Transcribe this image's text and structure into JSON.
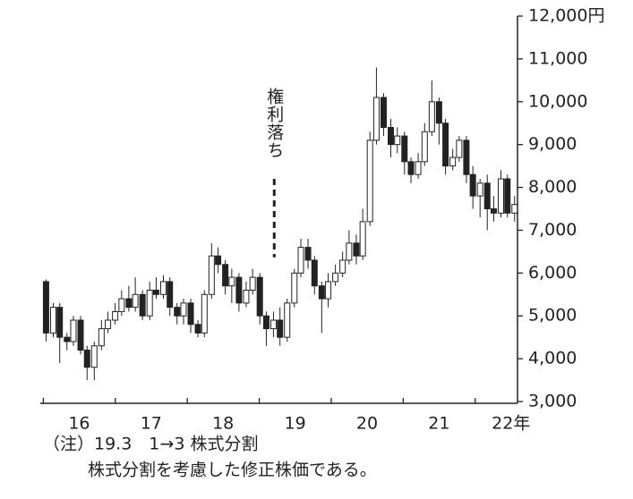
{
  "chart_data": {
    "type": "candlestick",
    "x": [
      2015.54,
      2015.64,
      2015.73,
      2015.83,
      2015.92,
      2016.02,
      2016.11,
      2016.21,
      2016.31,
      2016.4,
      2016.5,
      2016.59,
      2016.69,
      2016.78,
      2016.88,
      2016.98,
      2017.07,
      2017.17,
      2017.26,
      2017.36,
      2017.45,
      2017.55,
      2017.65,
      2017.74,
      2017.84,
      2017.93,
      2018.03,
      2018.12,
      2018.22,
      2018.32,
      2018.41,
      2018.51,
      2018.6,
      2018.7,
      2018.79,
      2018.89,
      2018.99,
      2019.08,
      2019.18,
      2019.27,
      2019.37,
      2019.46,
      2019.56,
      2019.66,
      2019.75,
      2019.85,
      2019.94,
      2020.04,
      2020.13,
      2020.23,
      2020.33,
      2020.42,
      2020.52,
      2020.61,
      2020.71,
      2020.8,
      2020.9,
      2021.0,
      2021.09,
      2021.19,
      2021.28,
      2021.38,
      2021.47,
      2021.57,
      2021.67,
      2021.76,
      2021.86,
      2021.95,
      2022.05
    ],
    "open": [
      5800,
      4600,
      5200,
      4500,
      4400,
      4900,
      4200,
      3800,
      4300,
      4700,
      4900,
      5100,
      5400,
      5200,
      5500,
      5000,
      5600,
      5500,
      5800,
      5200,
      5000,
      5300,
      4800,
      4600,
      5500,
      6400,
      6200,
      5700,
      5900,
      5300,
      5600,
      5900,
      5000,
      4700,
      4900,
      4500,
      5300,
      6000,
      6600,
      6300,
      5700,
      5400,
      5800,
      6000,
      6300,
      6700,
      6400,
      7200,
      9100,
      10100,
      9400,
      9000,
      9200,
      8600,
      8300,
      8600,
      9300,
      10000,
      9500,
      8500,
      8700,
      9100,
      8300,
      7800,
      8100,
      7500,
      7400,
      8200,
      7400
    ],
    "high": [
      5850,
      5300,
      5300,
      4600,
      5000,
      5000,
      4300,
      4400,
      4900,
      5100,
      5300,
      5600,
      5700,
      5900,
      5600,
      5800,
      5900,
      5950,
      5900,
      5300,
      5400,
      5400,
      4900,
      5600,
      6700,
      6600,
      6300,
      6100,
      6000,
      5800,
      6100,
      6000,
      5100,
      5100,
      5200,
      5400,
      6100,
      6800,
      6800,
      6400,
      5800,
      6000,
      6200,
      6500,
      7000,
      6900,
      7500,
      9300,
      10800,
      10200,
      9600,
      9400,
      9300,
      8700,
      8800,
      9500,
      10500,
      10100,
      9600,
      8900,
      9200,
      9200,
      8500,
      8200,
      8300,
      7800,
      8400,
      8300,
      7800
    ],
    "low": [
      4400,
      4500,
      3900,
      4200,
      4300,
      4100,
      3500,
      3500,
      4200,
      4600,
      4800,
      5000,
      5100,
      5100,
      4900,
      4900,
      5400,
      5400,
      5000,
      4800,
      4800,
      4600,
      4500,
      4500,
      5400,
      6000,
      5500,
      5300,
      5100,
      5200,
      5500,
      4800,
      4300,
      4500,
      4300,
      4400,
      5200,
      5900,
      6100,
      5500,
      4600,
      5200,
      5700,
      5900,
      6200,
      6200,
      6300,
      7100,
      9000,
      9200,
      8700,
      8800,
      8300,
      8100,
      8200,
      8500,
      9200,
      9000,
      8300,
      8400,
      8600,
      8100,
      7500,
      7300,
      7000,
      7200,
      7300,
      7300,
      7200
    ],
    "close": [
      4600,
      5200,
      4500,
      4400,
      4900,
      4200,
      3800,
      4300,
      4700,
      4900,
      5100,
      5400,
      5200,
      5500,
      5000,
      5600,
      5500,
      5800,
      5200,
      5000,
      5300,
      4800,
      4600,
      5500,
      6400,
      6200,
      5700,
      5900,
      5300,
      5600,
      5900,
      5000,
      4700,
      4900,
      4500,
      5300,
      6000,
      6600,
      6300,
      5700,
      5400,
      5800,
      6000,
      6300,
      6700,
      6400,
      7200,
      9100,
      10100,
      9400,
      9000,
      9200,
      8600,
      8300,
      8600,
      9300,
      10000,
      9500,
      8500,
      8700,
      9100,
      8300,
      7800,
      8100,
      7500,
      7400,
      8200,
      7400,
      7600
    ],
    "up_color": "#ffffff",
    "down_color": "#222222",
    "xlim": [
      2015.46,
      2022.09
    ],
    "xticks": [
      {
        "value": 2016,
        "label": "16"
      },
      {
        "value": 2017,
        "label": "17"
      },
      {
        "value": 2018,
        "label": "18"
      },
      {
        "value": 2019,
        "label": "19"
      },
      {
        "value": 2020,
        "label": "20"
      },
      {
        "value": 2021,
        "label": "21"
      },
      {
        "value": 2022,
        "label": "22年"
      }
    ],
    "ylim": [
      3000,
      12000
    ],
    "yticks": [
      {
        "value": 3000,
        "label": "3,000"
      },
      {
        "value": 4000,
        "label": "4,000"
      },
      {
        "value": 5000,
        "label": "5,000"
      },
      {
        "value": 6000,
        "label": "6,000"
      },
      {
        "value": 7000,
        "label": "7,000"
      },
      {
        "value": 8000,
        "label": "8,000"
      },
      {
        "value": 9000,
        "label": "9,000"
      },
      {
        "value": 10000,
        "label": "10,000"
      },
      {
        "value": 11000,
        "label": "11,000"
      },
      {
        "value": 12000,
        "label": "12,000円"
      }
    ],
    "annotation": {
      "text": "権利落ち",
      "x": 2018.71,
      "y": 6200
    },
    "notes": [
      "（注）19.3　1→3 株式分割",
      "株式分割を考慮した修正株価である。"
    ]
  }
}
